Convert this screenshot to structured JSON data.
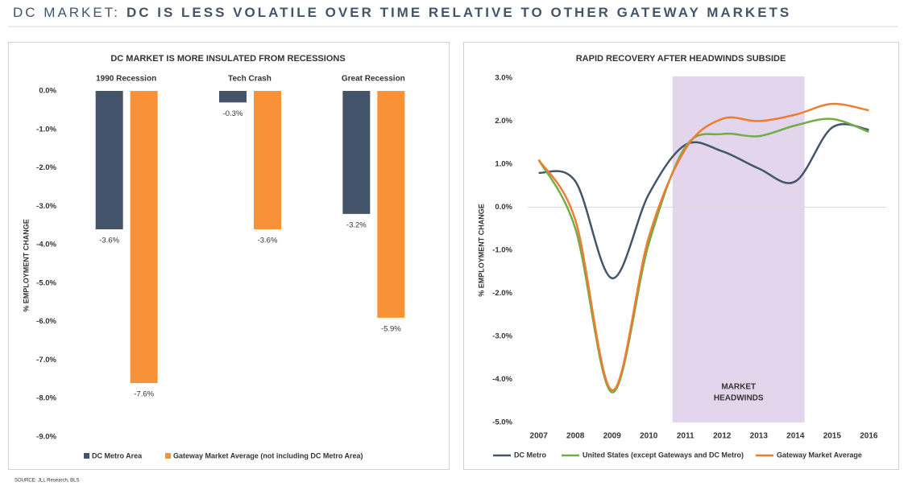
{
  "header": {
    "prefix": "DC MARKET:",
    "title": "DC IS LESS VOLATILE OVER TIME RELATIVE TO OTHER GATEWAY MARKETS"
  },
  "chart_data": [
    {
      "type": "bar",
      "title": "DC MARKET IS MORE INSULATED FROM RECESSIONS",
      "y_label": "% EMPLOYMENT CHANGE",
      "categories": [
        "1990 Recession",
        "Tech Crash",
        "Great Recession"
      ],
      "series": [
        {
          "name": "DC Metro Area",
          "color": "#44546a",
          "values": [
            -3.6,
            -0.3,
            -3.2
          ],
          "value_labels": [
            "-3.6%",
            "-0.3%",
            "-3.2%"
          ]
        },
        {
          "name": "Gateway Market Average (not including DC Metro Area)",
          "color": "#f79239",
          "values": [
            -7.6,
            -3.6,
            -5.9
          ],
          "value_labels": [
            "-7.6%",
            "-3.6%",
            "-5.9%"
          ]
        }
      ],
      "ylim": [
        -9,
        0
      ],
      "yticks": [
        {
          "value": 0,
          "label": "0.0%"
        },
        {
          "value": -1,
          "label": "-1.0%"
        },
        {
          "value": -2,
          "label": "-2.0%"
        },
        {
          "value": -3,
          "label": "-3.0%"
        },
        {
          "value": -4,
          "label": "-4.0%"
        },
        {
          "value": -5,
          "label": "-5.0%"
        },
        {
          "value": -6,
          "label": "-6.0%"
        },
        {
          "value": -7,
          "label": "-7.0%"
        },
        {
          "value": -8,
          "label": "-8.0%"
        },
        {
          "value": -9,
          "label": "-9.0%"
        }
      ],
      "legend": "bottom"
    },
    {
      "type": "line",
      "title": "RAPID RECOVERY AFTER HEADWINDS SUBSIDE",
      "y_label": "% EMPLOYMENT CHANGE",
      "x": [
        2007,
        2008,
        2009,
        2010,
        2011,
        2012,
        2013,
        2014,
        2015,
        2016
      ],
      "xlim": [
        2006.7,
        2016.3
      ],
      "xticks": [
        2007,
        2008,
        2009,
        2010,
        2011,
        2012,
        2013,
        2014,
        2015,
        2016
      ],
      "series": [
        {
          "name": "DC Metro",
          "color": "#44546a",
          "values": [
            0.8,
            0.6,
            -1.65,
            0.3,
            1.45,
            1.3,
            0.9,
            0.6,
            1.85,
            1.8
          ]
        },
        {
          "name": "United States (except Gateways and DC Metro)",
          "color": "#70ad47",
          "values": [
            1.1,
            -0.5,
            -4.3,
            -0.85,
            1.4,
            1.7,
            1.65,
            1.9,
            2.05,
            1.75
          ]
        },
        {
          "name": "Gateway Market Average",
          "color": "#ed7d31",
          "values": [
            1.1,
            -0.3,
            -4.25,
            -0.7,
            1.35,
            2.05,
            2.0,
            2.15,
            2.4,
            2.25
          ]
        }
      ],
      "ylim": [
        -5,
        3
      ],
      "yticks": [
        {
          "value": 3,
          "label": "3.0%"
        },
        {
          "value": 2,
          "label": "2.0%"
        },
        {
          "value": 1,
          "label": "1.0%"
        },
        {
          "value": 0,
          "label": "0.0%"
        },
        {
          "value": -1,
          "label": "-1.0%"
        },
        {
          "value": -2,
          "label": "-2.0%"
        },
        {
          "value": -3,
          "label": "-3.0%"
        },
        {
          "value": -4,
          "label": "-4.0%"
        },
        {
          "value": -5,
          "label": "-5.0%"
        }
      ],
      "shaded_region": {
        "x": [
          2010.65,
          2014.25
        ],
        "color": "#e2d5ec",
        "label_lines": [
          "MARKET",
          "HEADWINDS"
        ]
      },
      "legend": "bottom"
    }
  ],
  "source": "SOURCE: JLL Research, BLS"
}
